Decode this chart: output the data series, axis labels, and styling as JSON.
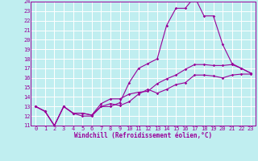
{
  "xlabel": "Windchill (Refroidissement éolien,°C)",
  "bg_color": "#c0eef0",
  "grid_color": "#ffffff",
  "line_color": "#990099",
  "xlim": [
    -0.5,
    23.5
  ],
  "ylim": [
    11,
    24
  ],
  "xticks": [
    0,
    1,
    2,
    3,
    4,
    5,
    6,
    7,
    8,
    9,
    10,
    11,
    12,
    13,
    14,
    15,
    16,
    17,
    18,
    19,
    20,
    21,
    22,
    23
  ],
  "yticks": [
    11,
    12,
    13,
    14,
    15,
    16,
    17,
    18,
    19,
    20,
    21,
    22,
    23,
    24
  ],
  "line1_x": [
    0,
    1,
    2,
    3,
    4,
    5,
    6,
    7,
    8,
    9,
    10,
    11,
    12,
    13,
    14,
    15,
    16,
    17,
    18,
    19,
    20,
    21,
    22,
    23
  ],
  "line1_y": [
    13.0,
    12.5,
    11.0,
    13.0,
    12.3,
    12.3,
    12.1,
    13.0,
    13.3,
    13.1,
    13.5,
    14.3,
    14.8,
    14.4,
    14.8,
    15.3,
    15.5,
    16.3,
    16.3,
    16.2,
    16.0,
    16.3,
    16.4,
    16.4
  ],
  "line2_x": [
    0,
    1,
    2,
    3,
    4,
    5,
    6,
    7,
    8,
    9,
    10,
    11,
    12,
    13,
    14,
    15,
    16,
    17,
    18,
    19,
    20,
    21,
    22,
    23
  ],
  "line2_y": [
    13.0,
    12.5,
    11.0,
    13.0,
    12.3,
    12.3,
    12.1,
    13.3,
    13.8,
    13.8,
    14.3,
    14.5,
    14.6,
    15.4,
    15.9,
    16.3,
    16.9,
    17.4,
    17.4,
    17.3,
    17.3,
    17.4,
    17.0,
    16.5
  ],
  "line3_x": [
    0,
    1,
    2,
    3,
    4,
    5,
    6,
    7,
    8,
    9,
    10,
    11,
    12,
    13,
    14,
    15,
    16,
    17,
    18,
    19,
    20,
    21,
    22,
    23
  ],
  "line3_y": [
    13.0,
    12.5,
    11.0,
    13.0,
    12.3,
    12.0,
    12.0,
    13.0,
    13.0,
    13.4,
    15.5,
    17.0,
    17.5,
    18.0,
    21.5,
    23.3,
    23.3,
    24.5,
    22.5,
    22.5,
    19.5,
    17.5,
    17.0,
    16.5
  ],
  "tick_fontsize": 5.0,
  "xlabel_fontsize": 5.5,
  "marker_size": 1.8,
  "line_width": 0.8
}
